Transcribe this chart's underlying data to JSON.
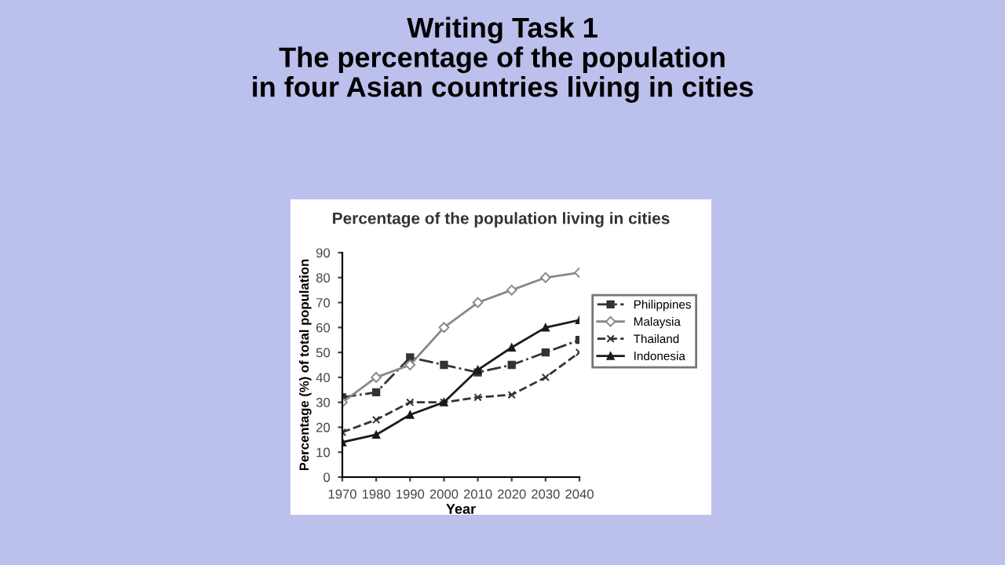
{
  "chart_data": {
    "type": "line",
    "title": "Writing Task 1\nThe percentage of the population\nin four Asian countries living in cities",
    "subtitle": "Percentage of the population living in cities",
    "xlabel": "Year",
    "ylabel": "Percentage (%) of total population",
    "x": [
      1970,
      1980,
      1990,
      2000,
      2010,
      2020,
      2030,
      2040
    ],
    "xlim": [
      1970,
      2040
    ],
    "xticks": [
      1970,
      1980,
      1990,
      2000,
      2010,
      2020,
      2030,
      2040
    ],
    "ylim": [
      0,
      90
    ],
    "yticks": [
      0,
      10,
      20,
      30,
      40,
      50,
      60,
      70,
      80,
      90
    ],
    "grid": false,
    "legend": "right",
    "series": [
      {
        "name": "Philippines",
        "color": "#333333",
        "line_style": "dashdot",
        "marker": "square",
        "values": [
          32,
          34,
          48,
          45,
          42,
          45,
          50,
          55
        ]
      },
      {
        "name": "Malaysia",
        "color": "#888888",
        "line_style": "solid",
        "marker": "diamond",
        "values": [
          30,
          40,
          45,
          60,
          70,
          75,
          80,
          82
        ]
      },
      {
        "name": "Thailand",
        "color": "#333333",
        "line_style": "dashed",
        "marker": "cross",
        "values": [
          18,
          23,
          30,
          30,
          32,
          33,
          40,
          50
        ]
      },
      {
        "name": "Indonesia",
        "color": "#1a1a1a",
        "line_style": "solid",
        "marker": "triangle",
        "values": [
          14,
          17,
          25,
          30,
          43,
          52,
          60,
          63
        ]
      }
    ]
  }
}
